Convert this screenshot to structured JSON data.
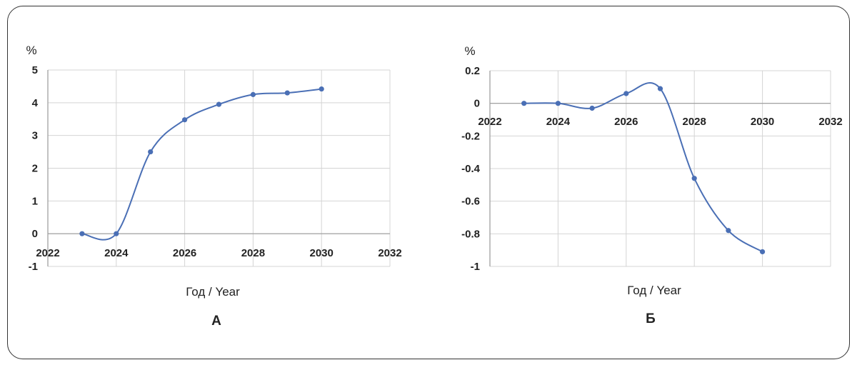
{
  "chart_data": [
    {
      "type": "line",
      "panel_label": "А",
      "unit_label": "%",
      "xlabel": "Год / Year",
      "ylabel": "",
      "xlim": [
        2022,
        2032
      ],
      "ylim": [
        -1,
        5
      ],
      "x_ticks": [
        "2022",
        "2024",
        "2026",
        "2028",
        "2030",
        "2032"
      ],
      "y_ticks": [
        "5",
        "4",
        "3",
        "2",
        "1",
        "0",
        "-1"
      ],
      "grid": true,
      "line_color": "#4a6fb5",
      "series": [
        {
          "x": [
            2023,
            2024,
            2025,
            2026,
            2027,
            2028,
            2029,
            2030
          ],
          "values": [
            0,
            0,
            2.5,
            3.48,
            3.95,
            4.25,
            4.3,
            4.42
          ]
        }
      ]
    },
    {
      "type": "line",
      "panel_label": "Б",
      "unit_label": "%",
      "xlabel": "Год / Year",
      "ylabel": "",
      "xlim": [
        2022,
        2032
      ],
      "ylim": [
        -1,
        0.2
      ],
      "x_ticks": [
        "2022",
        "2024",
        "2026",
        "2028",
        "2030",
        "2032"
      ],
      "y_ticks": [
        "0.2",
        "0",
        "-0.2",
        "-0.4",
        "-0.6",
        "-0.8",
        "-1"
      ],
      "grid": true,
      "line_color": "#4a6fb5",
      "series": [
        {
          "x": [
            2023,
            2024,
            2025,
            2026,
            2027,
            2028,
            2029,
            2030
          ],
          "values": [
            0,
            0,
            -0.03,
            0.06,
            0.09,
            -0.46,
            -0.78,
            -0.91
          ]
        }
      ]
    }
  ]
}
